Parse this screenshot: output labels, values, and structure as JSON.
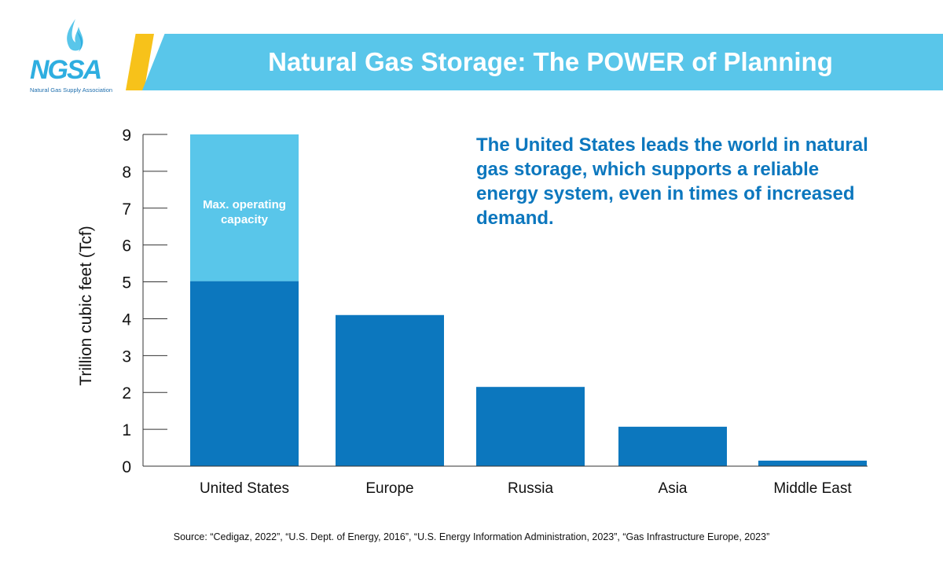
{
  "logo": {
    "text": "NGSA",
    "subtitle": "Natural Gas Supply Association",
    "icon": "flame-icon"
  },
  "header": {
    "title": "Natural Gas Storage: The POWER of Planning"
  },
  "annotation": "The United States leads the world in natural gas storage, which supports a reliable energy system, even in times of increased demand.",
  "source": "Source: “Cedigaz, 2022”, “U.S. Dept. of Energy, 2016”, “U.S. Energy Information Administration, 2023”, “Gas Infrastructure Europe, 2023”",
  "colors": {
    "bar_dark": "#0c77be",
    "bar_light": "#59c6ea",
    "accent": "#f7c21a",
    "banner": "#59c6ea"
  },
  "chart_data": {
    "type": "bar",
    "stacked": true,
    "categories": [
      "United States",
      "Europe",
      "Russia",
      "Asia",
      "Middle East"
    ],
    "series": [
      {
        "values": [
          5.02,
          4.1,
          2.15,
          1.07,
          0.15
        ],
        "color": "#0c77be"
      },
      {
        "values": [
          3.98,
          0,
          0,
          0,
          0
        ],
        "color": "#59c6ea"
      }
    ],
    "bar_annotation": "Max. operating capacity",
    "ylabel": "Trillion cubic feet (Tcf)",
    "xlabel": "",
    "ylim": [
      0,
      9
    ],
    "yticks": [
      0,
      1,
      2,
      3,
      4,
      5,
      6,
      7,
      8,
      9
    ],
    "grid": false,
    "legend": "none"
  }
}
